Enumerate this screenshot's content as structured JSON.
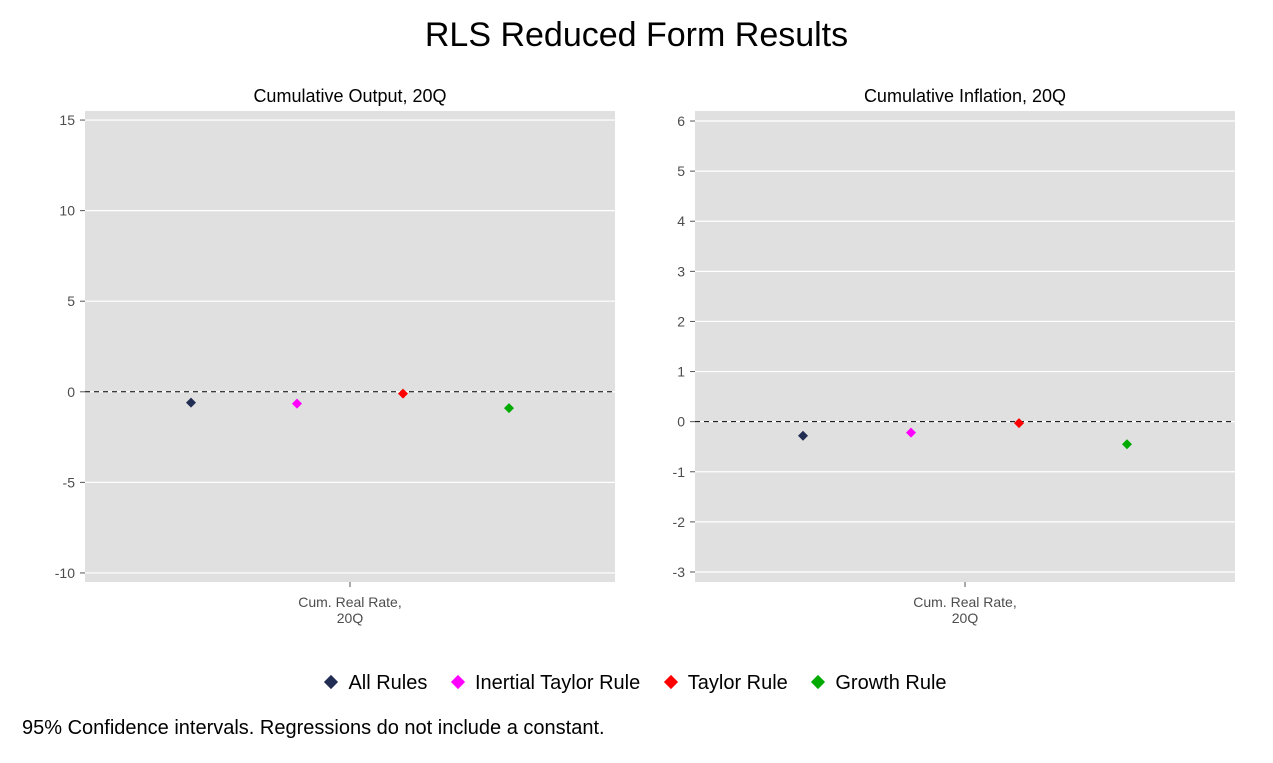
{
  "title": "RLS Reduced Form Results",
  "caption": "95% Confidence intervals. Regressions do not include a constant.",
  "colors": {
    "panel_bg": "#e0e0e0",
    "grid": "#ffffff",
    "all_rules": "#222d54",
    "inertial_taylor": "#ff00ff",
    "taylor": "#ff0000",
    "growth": "#00aa00"
  },
  "legend": [
    {
      "label": "All Rules",
      "color": "#222d54"
    },
    {
      "label": "Inertial Taylor Rule",
      "color": "#ff00ff"
    },
    {
      "label": "Taylor Rule",
      "color": "#ff0000"
    },
    {
      "label": "Growth Rule",
      "color": "#00aa00"
    }
  ],
  "chart_data": [
    {
      "type": "scatter",
      "title": "Cumulative Output, 20Q",
      "categories": [
        "Cum. Real Rate,\n20Q"
      ],
      "ylim": [
        -10.5,
        15.5
      ],
      "yticks": [
        -10,
        -5,
        0,
        5,
        10,
        15
      ],
      "ytick_labels": [
        "-10",
        "-5",
        "0",
        "5",
        "10",
        "15"
      ],
      "reference_line": 0,
      "series": [
        {
          "name": "All Rules",
          "values": [
            -0.6
          ]
        },
        {
          "name": "Inertial Taylor Rule",
          "values": [
            -0.65
          ]
        },
        {
          "name": "Taylor Rule",
          "values": [
            -0.1
          ]
        },
        {
          "name": "Growth Rule",
          "values": [
            -0.9
          ]
        }
      ]
    },
    {
      "type": "scatter",
      "title": "Cumulative Inflation, 20Q",
      "categories": [
        "Cum. Real Rate,\n20Q"
      ],
      "ylim": [
        -3.2,
        6.2
      ],
      "yticks": [
        -3,
        -2,
        -1,
        0,
        1,
        2,
        3,
        4,
        5,
        6
      ],
      "ytick_labels": [
        "-3",
        "-2",
        "-1",
        "0",
        "1",
        "2",
        "3",
        "4",
        "5",
        "6"
      ],
      "reference_line": 0,
      "series": [
        {
          "name": "All Rules",
          "values": [
            -0.28
          ]
        },
        {
          "name": "Inertial Taylor Rule",
          "values": [
            -0.22
          ]
        },
        {
          "name": "Taylor Rule",
          "values": [
            -0.03
          ]
        },
        {
          "name": "Growth Rule",
          "values": [
            -0.45
          ]
        }
      ]
    }
  ]
}
